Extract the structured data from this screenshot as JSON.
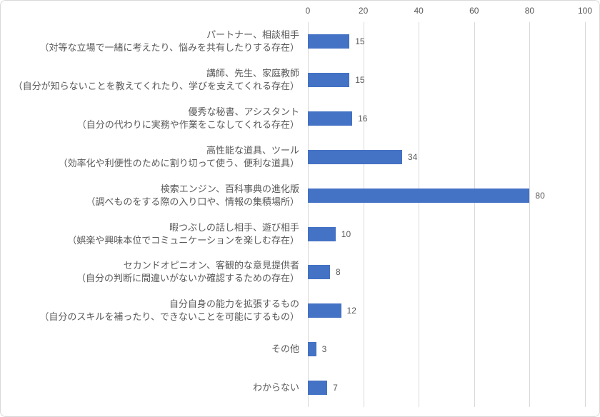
{
  "chart_data": {
    "type": "bar",
    "orientation": "horizontal",
    "title": "",
    "xlabel": "",
    "ylabel": "",
    "xlim": [
      0,
      100
    ],
    "xticks": [
      0,
      20,
      40,
      60,
      80,
      100
    ],
    "grid": true,
    "axis_position": "top",
    "value_labels": true,
    "bar_color": "#4472C4",
    "gridline_color": "#D9D9D9",
    "text_color": "#595959",
    "categories": [
      {
        "label": "パートナー、相談相手",
        "sublabel": "（対等な立場で一緒に考えたり、悩みを共有したりする存在）",
        "value": 15
      },
      {
        "label": "講師、先生、家庭教師",
        "sublabel": "（自分が知らないことを教えてくれたり、学びを支えてくれる存在）",
        "value": 15
      },
      {
        "label": "優秀な秘書、アシスタント",
        "sublabel": "（自分の代わりに実務や作業をこなしてくれる存在）",
        "value": 16
      },
      {
        "label": "高性能な道具、ツール",
        "sublabel": "（効率化や利便性のために割り切って使う、便利な道具）",
        "value": 34
      },
      {
        "label": "検索エンジン、百科事典の進化版",
        "sublabel": "（調べものをする際の入り口や、情報の集積場所）",
        "value": 80
      },
      {
        "label": "暇つぶしの話し相手、遊び相手",
        "sublabel": "（娯楽や興味本位でコミュニケーションを楽しむ存在）",
        "value": 10
      },
      {
        "label": "セカンドオピニオン、客観的な意見提供者",
        "sublabel": "（自分の判断に間違いがないか確認するための存在）",
        "value": 8
      },
      {
        "label": "自分自身の能力を拡張するもの",
        "sublabel": "（自分のスキルを補ったり、できないことを可能にするもの）",
        "value": 12
      },
      {
        "label": "その他",
        "sublabel": "",
        "value": 3
      },
      {
        "label": "わからない",
        "sublabel": "",
        "value": 7
      }
    ],
    "values": [
      15,
      15,
      16,
      34,
      80,
      10,
      8,
      12,
      3,
      7
    ]
  }
}
